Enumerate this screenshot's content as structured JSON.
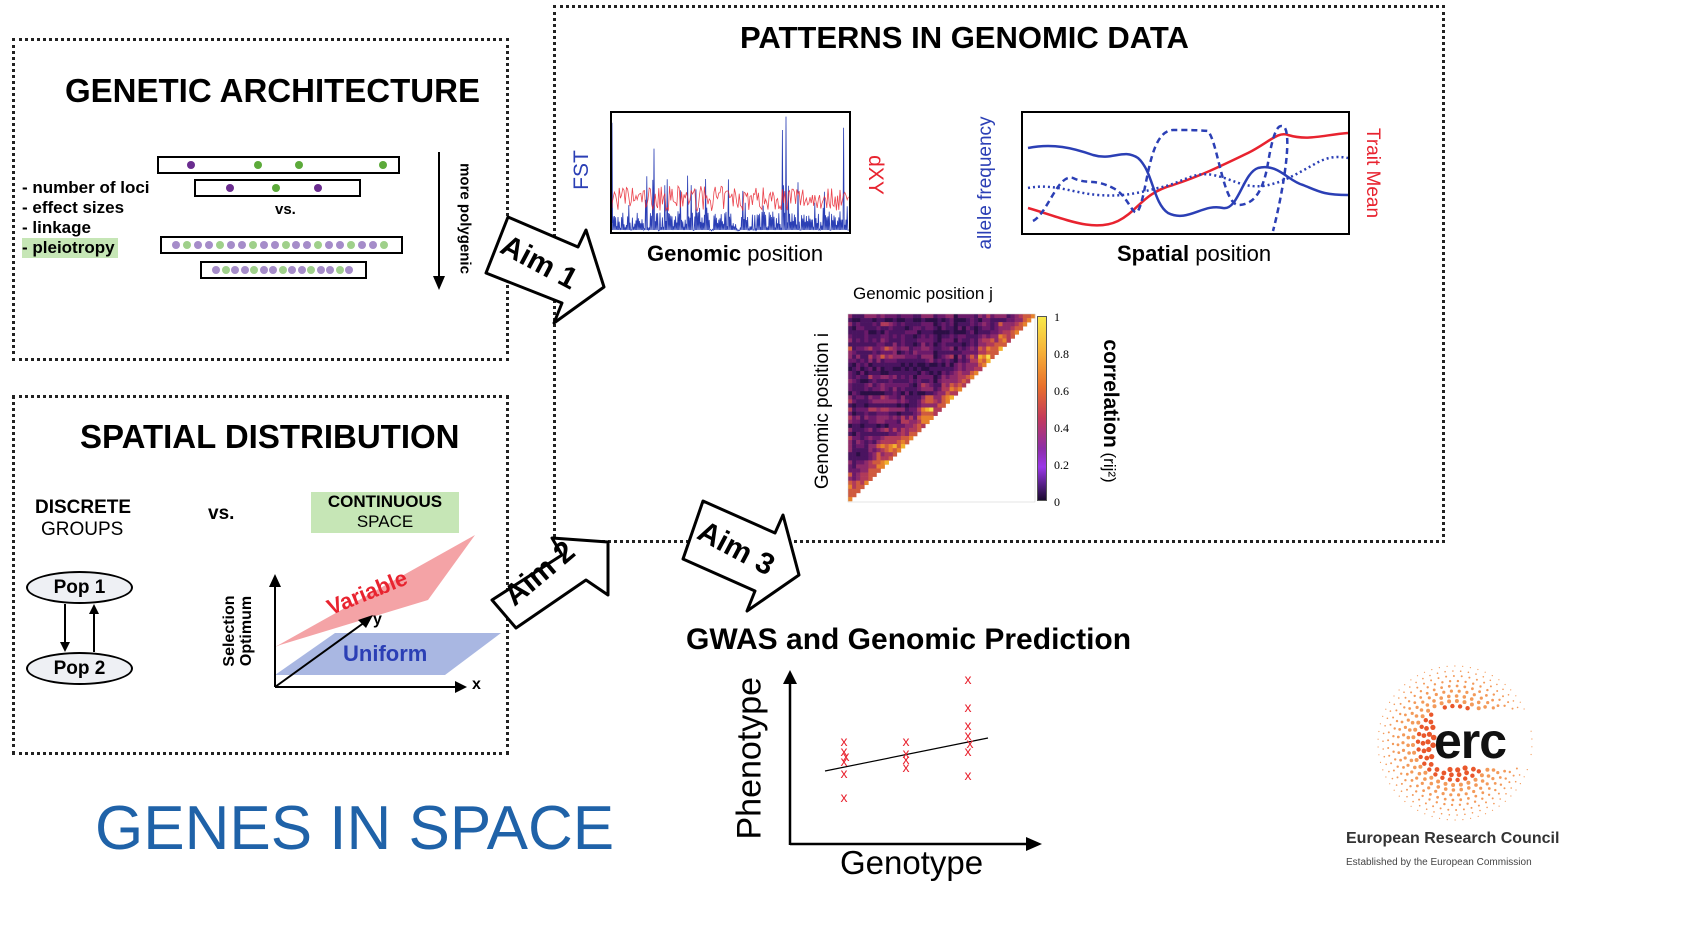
{
  "genetic_architecture": {
    "title": "GENETIC ARCHITECTURE",
    "bullets": [
      "- number of loci",
      "- effect sizes",
      "- linkage",
      "- pleiotropy"
    ],
    "vs": "vs.",
    "axis_label": "more polygenic"
  },
  "spatial_distribution": {
    "title": "SPATIAL DISTRIBUTION",
    "discrete_line1": "DISCRETE",
    "discrete_line2": "GROUPS",
    "vs": "vs.",
    "continuous_line1": "CONTINUOUS",
    "continuous_line2": "SPACE",
    "pop1": "Pop 1",
    "pop2": "Pop 2",
    "axis_line1": "Selection",
    "axis_line2": "Optimum",
    "axis_x": "x",
    "axis_y": "y",
    "variable": "Variable",
    "uniform": "Uniform"
  },
  "patterns": {
    "title": "PATTERNS IN GENOMIC DATA",
    "fst_label": "FST",
    "dxy_label": "dXY",
    "genomic_position_bold": "Genomic",
    "genomic_position_rest": " position",
    "allele_frequency_label": "allele frequency",
    "trait_mean_label": "Trait Mean",
    "spatial_position_bold": "Spatial",
    "spatial_position_rest": " position",
    "heatmap_top_label": "Genomic position j",
    "heatmap_left_label": "Genomic position i",
    "colorbar_ticks": [
      "1",
      "0.8",
      "0.6",
      "0.4",
      "0.2",
      "0"
    ],
    "correlation_label_bold": "correlation",
    "correlation_label_rest": " (rij²)"
  },
  "aims": {
    "aim1": "Aim 1",
    "aim2": "Aim 2",
    "aim3": "Aim 3"
  },
  "gwas": {
    "title": "GWAS and Genomic Prediction",
    "ylabel": "Phenotype",
    "xlabel": "Genotype"
  },
  "footer": {
    "project_title": "GENES IN SPACE",
    "erc_mark": "erc",
    "erc_name": "European Research Council",
    "erc_subtitle": "Established by the European Commission"
  },
  "colors": {
    "blue": "#2b3fb5",
    "red": "#e8232f",
    "green_highlight": "#c6e6b6",
    "title_blue": "#1f62a8",
    "purple_dot": "#6a2c8f",
    "green_dot": "#5caa3a"
  }
}
